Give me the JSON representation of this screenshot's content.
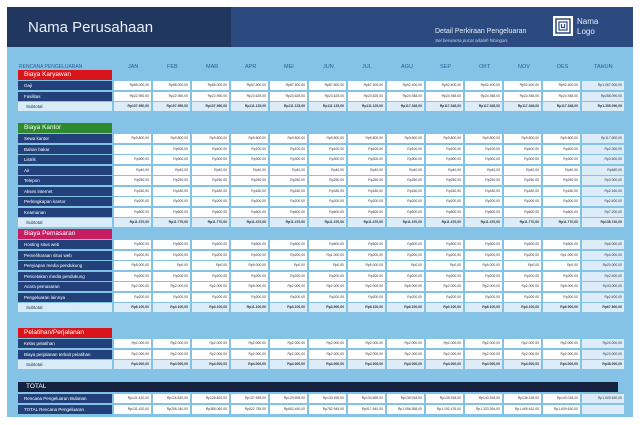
{
  "header": {
    "company": "Nama Perusahaan",
    "detail_title": "Detail Perkiraan Pengeluaran",
    "detail_subtitle": "Sel berwarna pucat adalah hitungan.",
    "logo_line1": "Nama",
    "logo_line2": "Logo"
  },
  "columns": {
    "label": "RENCANA PENGELUARAN",
    "months": [
      "JAN",
      "FEB",
      "MAR",
      "APR",
      "MEI",
      "JUN",
      "JUL",
      "AGU",
      "SEP",
      "OKT",
      "NOV",
      "DES"
    ],
    "year": "TAHUN"
  },
  "colors": {
    "karyawan": "#d9151b",
    "kantor": "#2f8a2f",
    "pemasaran": "#c51d5f",
    "pelatihan": "#d9151b",
    "header": "#2b4a80"
  },
  "sections": [
    {
      "title": "Biaya Karyawan",
      "rows": [
        {
          "label": "Gaji",
          "values": [
            "Rp85.000,00",
            "Rp85.000,00",
            "Rp85.000,00",
            "Rp87.500,00",
            "Rp87.500,00",
            "Rp87.500,00",
            "Rp87.500,00",
            "Rp92.400,00",
            "Rp92.400,00",
            "Rp92.400,00",
            "Rp92.400,00",
            "Rp92.400,00"
          ],
          "total": "Rp1.067.000,00"
        },
        {
          "label": "Fasilitas",
          "values": [
            "Rp22.950,00",
            "Rp22.950,00",
            "Rp22.950,00",
            "Rp23.625,00",
            "Rp23.625,00",
            "Rp23.625,00",
            "Rp23.625,00",
            "Rp24.948,00",
            "Rp24.948,00",
            "Rp24.948,00",
            "Rp24.948,00",
            "Rp24.948,00"
          ],
          "total": "Rp288.090,00"
        }
      ],
      "subtotal": {
        "label": "Subtotal",
        "values": [
          "Rp107.950,00",
          "Rp107.950,00",
          "Rp107.950,00",
          "Rp111.125,00",
          "Rp111.125,00",
          "Rp111.125,00",
          "Rp111.125,00",
          "Rp117.348,00",
          "Rp117.348,00",
          "Rp117.348,00",
          "Rp117.348,00",
          "Rp117.348,00"
        ],
        "total": "Rp1.355.090,00"
      }
    },
    {
      "title": "Biaya Kantor",
      "rows": [
        {
          "label": "Sewa kantor",
          "values": [
            "Rp9.800,00",
            "Rp9.800,00",
            "Rp9.800,00",
            "Rp9.800,00",
            "Rp9.800,00",
            "Rp9.800,00",
            "Rp9.800,00",
            "Rp9.800,00",
            "Rp9.800,00",
            "Rp9.800,00",
            "Rp9.800,00",
            "Rp9.800,00"
          ],
          "total": "Rp117.600,00"
        },
        {
          "label": "Bahan bakar",
          "values": [
            "",
            "Rp400,00",
            "Rp400,00",
            "Rp100,00",
            "Rp100,00",
            "Rp100,00",
            "Rp100,00",
            "Rp100,00",
            "Rp100,00",
            "Rp100,00",
            "Rp400,00",
            "Rp400,00"
          ],
          "total": "Rp2.300,00"
        },
        {
          "label": "Listrik",
          "values": [
            "Rp300,00",
            "Rp300,00",
            "Rp300,00",
            "Rp300,00",
            "Rp300,00",
            "Rp300,00",
            "Rp300,00",
            "Rp300,00",
            "Rp300,00",
            "Rp300,00",
            "Rp300,00",
            "Rp300,00"
          ],
          "total": "Rp3.600,00"
        },
        {
          "label": "Air",
          "values": [
            "Rp40,00",
            "Rp40,00",
            "Rp40,00",
            "Rp40,00",
            "Rp40,00",
            "Rp40,00",
            "Rp40,00",
            "Rp40,00",
            "Rp40,00",
            "Rp40,00",
            "Rp40,00",
            "Rp40,00"
          ],
          "total": "Rp480,00"
        },
        {
          "label": "Telepon",
          "values": [
            "Rp250,00",
            "Rp250,00",
            "Rp250,00",
            "Rp250,00",
            "Rp250,00",
            "Rp250,00",
            "Rp250,00",
            "Rp250,00",
            "Rp250,00",
            "Rp250,00",
            "Rp250,00",
            "Rp250,00"
          ],
          "total": "Rp3.000,00"
        },
        {
          "label": "Akses internet",
          "values": [
            "Rp180,00",
            "Rp180,00",
            "Rp180,00",
            "Rp180,00",
            "Rp180,00",
            "Rp180,00",
            "Rp180,00",
            "Rp180,00",
            "Rp180,00",
            "Rp180,00",
            "Rp180,00",
            "Rp180,00"
          ],
          "total": "Rp2.160,00"
        },
        {
          "label": "Perlengkapan kantor",
          "values": [
            "Rp200,00",
            "Rp200,00",
            "Rp200,00",
            "Rp200,00",
            "Rp200,00",
            "Rp200,00",
            "Rp200,00",
            "Rp200,00",
            "Rp200,00",
            "Rp200,00",
            "Rp200,00",
            "Rp200,00"
          ],
          "total": "Rp2.400,00"
        },
        {
          "label": "Keamanan",
          "values": [
            "Rp600,00",
            "Rp600,00",
            "Rp600,00",
            "Rp600,00",
            "Rp600,00",
            "Rp600,00",
            "Rp600,00",
            "Rp600,00",
            "Rp600,00",
            "Rp600,00",
            "Rp600,00",
            "Rp600,00"
          ],
          "total": "Rp7.200,00"
        }
      ],
      "subtotal": {
        "label": "Subtotal",
        "values": [
          "Rp11.370,00",
          "Rp11.770,00",
          "Rp11.770,00",
          "Rp11.470,00",
          "Rp11.470,00",
          "Rp11.470,00",
          "Rp11.470,00",
          "Rp11.470,00",
          "Rp11.470,00",
          "Rp11.470,00",
          "Rp11.770,00",
          "Rp11.770,00"
        ],
        "total": "Rp138.740,00"
      }
    },
    {
      "title": "Biaya Pemasaran",
      "rows": [
        {
          "label": "Hosting situs web",
          "values": [
            "Rp500,00",
            "Rp500,00",
            "Rp500,00",
            "Rp500,00",
            "Rp500,00",
            "Rp500,00",
            "Rp500,00",
            "Rp500,00",
            "Rp500,00",
            "Rp500,00",
            "Rp500,00",
            "Rp500,00"
          ],
          "total": "Rp6.000,00"
        },
        {
          "label": "Pemeliharaan situs web",
          "values": [
            "Rp200,00",
            "Rp200,00",
            "Rp200,00",
            "Rp200,00",
            "Rp200,00",
            "Rp1.000,00",
            "Rp200,00",
            "Rp200,00",
            "Rp200,00",
            "Rp200,00",
            "Rp200,00",
            "Rp1.000,00"
          ],
          "total": "Rp4.000,00"
        },
        {
          "label": "Penyiapan media pendukung",
          "values": [
            "Rp5.000,00",
            "Rp0,00",
            "Rp0,00",
            "Rp5.000,00",
            "Rp0,00",
            "Rp0,00",
            "Rp5.000,00",
            "Rp0,00",
            "Rp0,00",
            "Rp5.000,00",
            "Rp0,00",
            "Rp0,00"
          ],
          "total": "Rp20.000,00"
        },
        {
          "label": "Pencetakan media pendukung",
          "values": [
            "Rp200,00",
            "Rp200,00",
            "Rp200,00",
            "Rp200,00",
            "Rp200,00",
            "Rp200,00",
            "Rp200,00",
            "Rp200,00",
            "Rp200,00",
            "Rp200,00",
            "Rp200,00",
            "Rp200,00"
          ],
          "total": "Rp2.400,00"
        },
        {
          "label": "Acara pemasaran",
          "values": [
            "Rp2.000,00",
            "Rp2.000,00",
            "Rp2.000,00",
            "Rp5.000,00",
            "Rp2.000,00",
            "Rp2.000,00",
            "Rp2.000,00",
            "Rp5.000,00",
            "Rp2.000,00",
            "Rp2.000,00",
            "Rp2.000,00",
            "Rp5.000,00"
          ],
          "total": "Rp33.000,00"
        },
        {
          "label": "Pengeluaran lainnya",
          "values": [
            "Rp200,00",
            "Rp200,00",
            "Rp200,00",
            "Rp200,00",
            "Rp200,00",
            "Rp200,00",
            "Rp200,00",
            "Rp200,00",
            "Rp200,00",
            "Rp200,00",
            "Rp200,00",
            "Rp200,00"
          ],
          "total": "Rp2.400,00"
        }
      ],
      "subtotal": {
        "label": "Subtotal",
        "values": [
          "Rp8.100,00",
          "Rp3.100,00",
          "Rp3.100,00",
          "Rp11.100,00",
          "Rp3.100,00",
          "Rp3.900,00",
          "Rp8.100,00",
          "Rp6.100,00",
          "Rp3.100,00",
          "Rp8.100,00",
          "Rp3.100,00",
          "Rp6.900,00"
        ],
        "total": "Rp67.800,00"
      }
    },
    {
      "title": "Pelatihan/Perjalanan",
      "rows": [
        {
          "label": "Kelas pelatihan",
          "values": [
            "Rp2.000,00",
            "Rp2.000,00",
            "Rp2.000,00",
            "Rp2.000,00",
            "Rp2.000,00",
            "Rp2.000,00",
            "Rp2.000,00",
            "Rp2.000,00",
            "Rp2.000,00",
            "Rp2.000,00",
            "Rp2.000,00",
            "Rp2.000,00"
          ],
          "total": "Rp24.000,00"
        },
        {
          "label": "Biaya perjalanan terkait pelatihan",
          "values": [
            "Rp2.000,00",
            "Rp2.000,00",
            "Rp2.000,00",
            "Rp2.000,00",
            "Rp2.000,00",
            "Rp2.000,00",
            "Rp2.000,00",
            "Rp2.000,00",
            "Rp2.000,00",
            "Rp2.000,00",
            "Rp2.000,00",
            "Rp2.000,00"
          ],
          "total": "Rp24.000,00"
        }
      ],
      "subtotal": {
        "label": "Subtotal",
        "values": [
          "Rp4.000,00",
          "Rp4.000,00",
          "Rp4.000,00",
          "Rp4.000,00",
          "Rp4.000,00",
          "Rp4.000,00",
          "Rp4.000,00",
          "Rp4.000,00",
          "Rp4.000,00",
          "Rp4.000,00",
          "Rp4.000,00",
          "Rp4.000,00"
        ],
        "total": "Rp48.000,00"
      }
    }
  ],
  "totals": {
    "title": "TOTAL",
    "rows": [
      {
        "label": "Rencana Pengeluaran Bulanan",
        "values": [
          "Rp131.420,00",
          "Rp126.820,00",
          "Rp126.820,00",
          "Rp137.695,00",
          "Rp129.695,00",
          "Rp130.495,00",
          "Rp134.695,00",
          "Rp138.918,00",
          "Rp135.918,00",
          "Rp140.918,00",
          "Rp136.218,00",
          "Rp140.018,00"
        ],
        "total": "Rp1.609.630,00"
      },
      {
        "label": "TOTAL Rencana Pengeluaran",
        "values": [
          "Rp131.420,00",
          "Rp258.240,00",
          "Rp385.060,00",
          "Rp522.755,00",
          "Rp652.450,00",
          "Rp782.945,00",
          "Rp917.640,00",
          "Rp1.056.558,00",
          "Rp1.192.476,00",
          "Rp1.333.394,00",
          "Rp1.469.612,00",
          "Rp1.609.630,00"
        ],
        "total": ""
      }
    ]
  }
}
